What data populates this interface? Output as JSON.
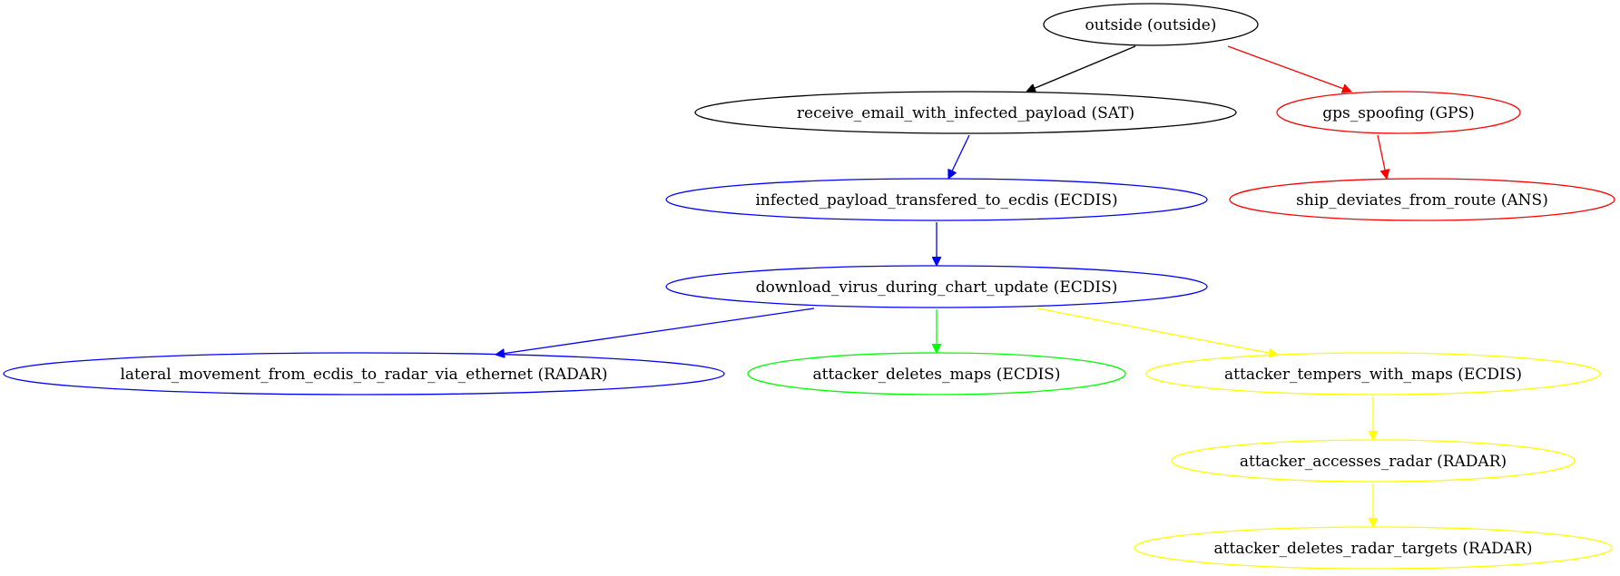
{
  "diagram": {
    "nodes": [
      {
        "id": "outside",
        "label": "outside (outside)",
        "color": "#000000"
      },
      {
        "id": "receive_email",
        "label": "receive_email_with_infected_payload (SAT)",
        "color": "#000000"
      },
      {
        "id": "gps_spoofing",
        "label": "gps_spoofing (GPS)",
        "color": "#ff0000"
      },
      {
        "id": "infected_payload",
        "label": "infected_payload_transfered_to_ecdis (ECDIS)",
        "color": "#0000ff"
      },
      {
        "id": "ship_deviates",
        "label": "ship_deviates_from_route (ANS)",
        "color": "#ff0000"
      },
      {
        "id": "download_virus",
        "label": "download_virus_during_chart_update (ECDIS)",
        "color": "#0000ff"
      },
      {
        "id": "lateral_movement",
        "label": "lateral_movement_from_ecdis_to_radar_via_ethernet (RADAR)",
        "color": "#0000ff"
      },
      {
        "id": "deletes_maps",
        "label": "attacker_deletes_maps (ECDIS)",
        "color": "#00ff00"
      },
      {
        "id": "tempers_maps",
        "label": "attacker_tempers_with_maps (ECDIS)",
        "color": "#ffff00"
      },
      {
        "id": "accesses_radar",
        "label": "attacker_accesses_radar (RADAR)",
        "color": "#ffff00"
      },
      {
        "id": "deletes_radar_targets",
        "label": "attacker_deletes_radar_targets (RADAR)",
        "color": "#ffff00"
      }
    ],
    "edges": [
      {
        "from": "outside",
        "to": "receive_email",
        "color": "#000000"
      },
      {
        "from": "outside",
        "to": "gps_spoofing",
        "color": "#ff0000"
      },
      {
        "from": "receive_email",
        "to": "infected_payload",
        "color": "#0000ff"
      },
      {
        "from": "gps_spoofing",
        "to": "ship_deviates",
        "color": "#ff0000"
      },
      {
        "from": "infected_payload",
        "to": "download_virus",
        "color": "#0000ff"
      },
      {
        "from": "download_virus",
        "to": "lateral_movement",
        "color": "#0000ff"
      },
      {
        "from": "download_virus",
        "to": "deletes_maps",
        "color": "#00ff00"
      },
      {
        "from": "download_virus",
        "to": "tempers_maps",
        "color": "#ffff00"
      },
      {
        "from": "tempers_maps",
        "to": "accesses_radar",
        "color": "#ffff00"
      },
      {
        "from": "accesses_radar",
        "to": "deletes_radar_targets",
        "color": "#ffff00"
      }
    ]
  }
}
